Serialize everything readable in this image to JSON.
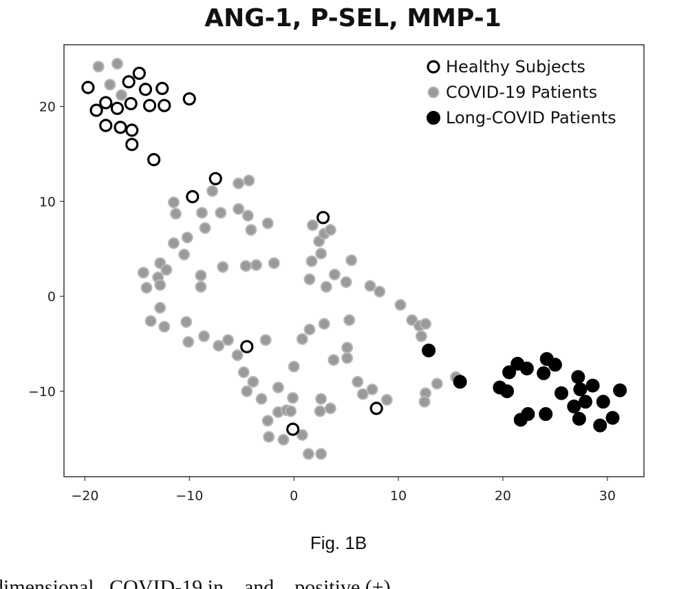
{
  "chart_data": {
    "type": "scatter",
    "title": "ANG-1, P-SEL, MMP-1",
    "xlabel": "",
    "ylabel": "",
    "xlim": [
      -22,
      33.5
    ],
    "ylim": [
      -19,
      26.5
    ],
    "x_ticks": [
      -20,
      -10,
      0,
      10,
      20,
      30
    ],
    "x_tick_labels": [
      "−20",
      "−10",
      "0",
      "10",
      "20",
      "30"
    ],
    "y_ticks": [
      -10,
      0,
      10,
      20
    ],
    "y_tick_labels": [
      "−10",
      "0",
      "10",
      "20"
    ],
    "grid": false,
    "legend_position": "top-right",
    "series": [
      {
        "name": "Healthy Subjects",
        "marker": "open-circle",
        "points": [
          {
            "x": -19.7,
            "y": 22.0
          },
          {
            "x": -15.8,
            "y": 22.6
          },
          {
            "x": -14.8,
            "y": 23.5
          },
          {
            "x": -18.9,
            "y": 19.6
          },
          {
            "x": -18.0,
            "y": 20.4
          },
          {
            "x": -16.9,
            "y": 19.8
          },
          {
            "x": -15.6,
            "y": 20.3
          },
          {
            "x": -14.2,
            "y": 21.8
          },
          {
            "x": -13.8,
            "y": 20.1
          },
          {
            "x": -12.6,
            "y": 21.9
          },
          {
            "x": -12.4,
            "y": 20.1
          },
          {
            "x": -10.0,
            "y": 20.8
          },
          {
            "x": -18.0,
            "y": 18.0
          },
          {
            "x": -16.6,
            "y": 17.8
          },
          {
            "x": -15.5,
            "y": 17.5
          },
          {
            "x": -15.5,
            "y": 16.0
          },
          {
            "x": -13.4,
            "y": 14.4
          },
          {
            "x": -7.5,
            "y": 12.4
          },
          {
            "x": -9.7,
            "y": 10.5
          },
          {
            "x": 2.8,
            "y": 8.3
          },
          {
            "x": -4.5,
            "y": -5.3
          },
          {
            "x": 7.9,
            "y": -11.8
          },
          {
            "x": -0.1,
            "y": -14.0
          }
        ]
      },
      {
        "name": "COVID-19 Patients",
        "marker": "filled-circle-gray",
        "points": [
          {
            "x": -18.7,
            "y": 24.2
          },
          {
            "x": -16.9,
            "y": 24.5
          },
          {
            "x": -17.6,
            "y": 22.3
          },
          {
            "x": -16.5,
            "y": 21.2
          },
          {
            "x": -11.5,
            "y": 9.9
          },
          {
            "x": -11.3,
            "y": 8.7
          },
          {
            "x": -7.8,
            "y": 11.1
          },
          {
            "x": -5.3,
            "y": 11.9
          },
          {
            "x": -4.3,
            "y": 12.2
          },
          {
            "x": -5.3,
            "y": 9.2
          },
          {
            "x": -4.4,
            "y": 8.5
          },
          {
            "x": -8.8,
            "y": 8.8
          },
          {
            "x": -7.0,
            "y": 8.8
          },
          {
            "x": -2.5,
            "y": 7.7
          },
          {
            "x": -8.5,
            "y": 7.2
          },
          {
            "x": -4.1,
            "y": 7.0
          },
          {
            "x": -11.5,
            "y": 5.6
          },
          {
            "x": -10.2,
            "y": 6.2
          },
          {
            "x": -10.5,
            "y": 4.4
          },
          {
            "x": -12.8,
            "y": 3.5
          },
          {
            "x": -14.4,
            "y": 2.5
          },
          {
            "x": -12.2,
            "y": 2.8
          },
          {
            "x": -13.0,
            "y": 2.0
          },
          {
            "x": -14.1,
            "y": 0.9
          },
          {
            "x": -12.8,
            "y": 1.2
          },
          {
            "x": -8.9,
            "y": 2.2
          },
          {
            "x": -8.9,
            "y": 1.0
          },
          {
            "x": -6.8,
            "y": 3.1
          },
          {
            "x": -4.6,
            "y": 3.2
          },
          {
            "x": -3.6,
            "y": 3.3
          },
          {
            "x": -1.9,
            "y": 3.5
          },
          {
            "x": -12.8,
            "y": -1.2
          },
          {
            "x": -13.7,
            "y": -2.6
          },
          {
            "x": -12.4,
            "y": -3.2
          },
          {
            "x": -10.3,
            "y": -2.7
          },
          {
            "x": -10.1,
            "y": -4.8
          },
          {
            "x": -8.6,
            "y": -4.2
          },
          {
            "x": -7.2,
            "y": -5.2
          },
          {
            "x": -6.3,
            "y": -4.6
          },
          {
            "x": -2.7,
            "y": -4.6
          },
          {
            "x": -5.4,
            "y": -6.2
          },
          {
            "x": -4.8,
            "y": -8.0
          },
          {
            "x": -4.5,
            "y": -10.0
          },
          {
            "x": -3.9,
            "y": -9.0
          },
          {
            "x": -3.1,
            "y": -10.8
          },
          {
            "x": -2.5,
            "y": -13.1
          },
          {
            "x": -1.5,
            "y": -9.6
          },
          {
            "x": -1.5,
            "y": -12.2
          },
          {
            "x": -0.7,
            "y": -12.0
          },
          {
            "x": -0.1,
            "y": -10.7
          },
          {
            "x": -0.3,
            "y": -12.1
          },
          {
            "x": -2.4,
            "y": -14.8
          },
          {
            "x": -1.0,
            "y": -15.1
          },
          {
            "x": 0.8,
            "y": -14.6
          },
          {
            "x": 1.4,
            "y": -16.6
          },
          {
            "x": 2.6,
            "y": -16.6
          },
          {
            "x": 2.6,
            "y": -10.8
          },
          {
            "x": 2.5,
            "y": -12.1
          },
          {
            "x": 3.5,
            "y": -11.8
          },
          {
            "x": 0.0,
            "y": -7.4
          },
          {
            "x": 0.8,
            "y": -4.5
          },
          {
            "x": 1.5,
            "y": -3.5
          },
          {
            "x": 2.9,
            "y": -2.9
          },
          {
            "x": 3.8,
            "y": -6.7
          },
          {
            "x": 5.1,
            "y": -6.5
          },
          {
            "x": 5.1,
            "y": -5.4
          },
          {
            "x": 5.3,
            "y": -2.5
          },
          {
            "x": 6.1,
            "y": -9.0
          },
          {
            "x": 6.6,
            "y": -10.3
          },
          {
            "x": 7.5,
            "y": -9.8
          },
          {
            "x": 8.9,
            "y": -10.9
          },
          {
            "x": 1.5,
            "y": 1.8
          },
          {
            "x": 3.1,
            "y": 1.0
          },
          {
            "x": 3.9,
            "y": 2.3
          },
          {
            "x": 5.0,
            "y": 1.5
          },
          {
            "x": 1.7,
            "y": 3.7
          },
          {
            "x": 2.6,
            "y": 4.5
          },
          {
            "x": 2.4,
            "y": 5.8
          },
          {
            "x": 2.9,
            "y": 6.6
          },
          {
            "x": 3.5,
            "y": 7.0
          },
          {
            "x": 1.8,
            "y": 7.5
          },
          {
            "x": 5.5,
            "y": 3.8
          },
          {
            "x": 7.3,
            "y": 1.1
          },
          {
            "x": 8.2,
            "y": 0.5
          },
          {
            "x": 10.2,
            "y": -0.9
          },
          {
            "x": 11.3,
            "y": -2.5
          },
          {
            "x": 12.0,
            "y": -3.1
          },
          {
            "x": 12.6,
            "y": -2.9
          },
          {
            "x": 12.2,
            "y": -4.2
          },
          {
            "x": 12.6,
            "y": -10.2
          },
          {
            "x": 12.5,
            "y": -11.1
          },
          {
            "x": 13.7,
            "y": -9.2
          },
          {
            "x": 15.5,
            "y": -8.5
          }
        ]
      },
      {
        "name": "Long-COVID Patients",
        "marker": "filled-circle-black",
        "points": [
          {
            "x": 12.9,
            "y": -5.7
          },
          {
            "x": 15.9,
            "y": -9.0
          },
          {
            "x": 19.7,
            "y": -9.6
          },
          {
            "x": 20.4,
            "y": -10.0
          },
          {
            "x": 20.6,
            "y": -8.0
          },
          {
            "x": 21.4,
            "y": -7.1
          },
          {
            "x": 22.3,
            "y": -7.6
          },
          {
            "x": 21.7,
            "y": -13.0
          },
          {
            "x": 22.4,
            "y": -12.4
          },
          {
            "x": 24.1,
            "y": -12.4
          },
          {
            "x": 24.2,
            "y": -6.6
          },
          {
            "x": 23.9,
            "y": -8.1
          },
          {
            "x": 25.0,
            "y": -7.2
          },
          {
            "x": 25.6,
            "y": -10.2
          },
          {
            "x": 26.8,
            "y": -11.6
          },
          {
            "x": 27.2,
            "y": -8.5
          },
          {
            "x": 27.4,
            "y": -9.8
          },
          {
            "x": 27.3,
            "y": -12.9
          },
          {
            "x": 27.9,
            "y": -11.1
          },
          {
            "x": 28.6,
            "y": -9.4
          },
          {
            "x": 29.6,
            "y": -11.1
          },
          {
            "x": 29.3,
            "y": -13.6
          },
          {
            "x": 30.5,
            "y": -12.8
          },
          {
            "x": 31.2,
            "y": -9.9
          }
        ]
      }
    ]
  },
  "caption": "Fig. 1B",
  "body_text_fragment": "dimensional...COVID-19 in... and... positive (+)..."
}
